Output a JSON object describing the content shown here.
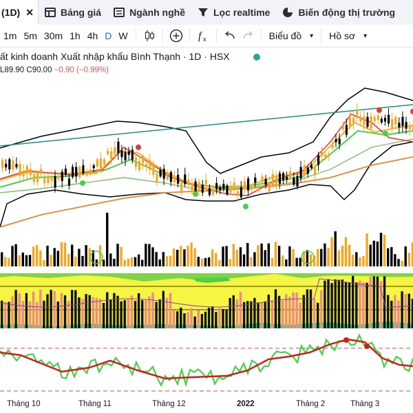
{
  "tabs": {
    "active_tab": "(1D)",
    "close_glyph": "✕",
    "items": [
      {
        "label": "Bảng giá",
        "icon": "table-icon"
      },
      {
        "label": "Ngành nghề",
        "icon": "list-icon"
      },
      {
        "label": "Lọc realtime",
        "icon": "filter-icon"
      },
      {
        "label": "Biến động thị trường",
        "icon": "pie-chart-icon"
      }
    ]
  },
  "toolbar": {
    "timeframes": [
      "1m",
      "5m",
      "30m",
      "1h",
      "4h",
      "D",
      "W"
    ],
    "active_timeframe": "D",
    "chart_type_button": "Biểu đồ",
    "profile_button": "Hồ sơ"
  },
  "legend": {
    "title": "ất kinh doanh Xuất nhập khẩu Bình Thạnh · 1D · HSX",
    "ohlc_low": "L89.90",
    "ohlc_close": "C90.00",
    "ohlc_change": "−0.90 (−0.99%)"
  },
  "x_axis": {
    "labels": [
      "Tháng 10",
      "Tháng 11",
      "Tháng 12",
      "2022",
      "Tháng 2",
      "Tháng 3"
    ]
  },
  "colors": {
    "up": "#000000",
    "down": "#f5a623",
    "bollinger": "#000000",
    "trendline": "#1a8f8a",
    "ma_fast": "#e53935",
    "ma_mid": "#f7b733",
    "ma_green": "#45d145",
    "ma_long": "#e8842c",
    "rsi_fast": "#43d443",
    "rsi_slow": "#d01c1c"
  }
}
